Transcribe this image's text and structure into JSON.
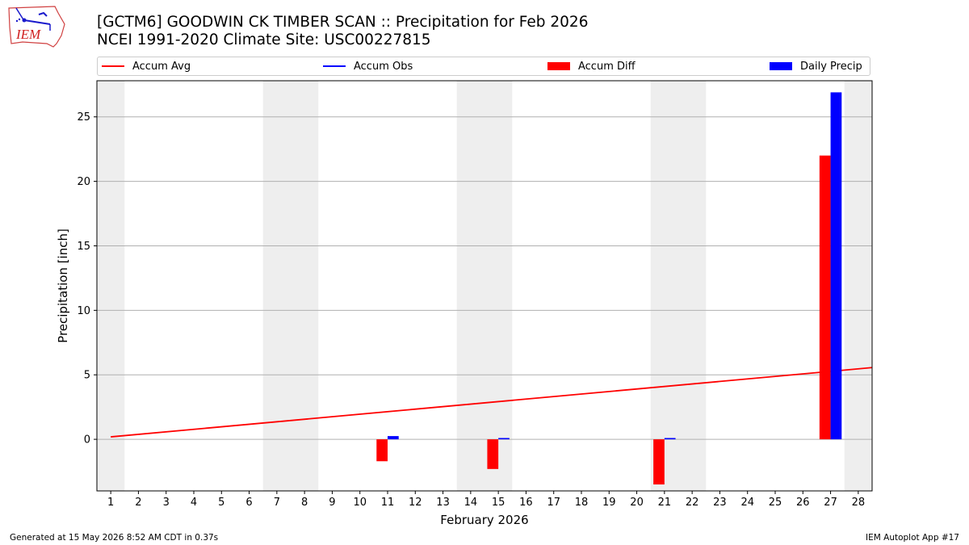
{
  "title": "[GCTM6] GOODWIN CK TIMBER SCAN :: Precipitation for Feb 2026",
  "subtitle": "NCEI 1991-2020 Climate Site: USC00227815",
  "logo_text": "IEM",
  "footer_left": "Generated at 15 May 2026 8:52 AM CDT in 0.37s",
  "footer_right": "IEM Autoplot App #17",
  "legend": [
    {
      "label": "Accum Avg",
      "kind": "line",
      "color": "#ff0000"
    },
    {
      "label": "Accum Obs",
      "kind": "line",
      "color": "#0000ff"
    },
    {
      "label": "Accum Diff",
      "kind": "bar",
      "color": "#ff0000"
    },
    {
      "label": "Daily Precip",
      "kind": "bar",
      "color": "#0000ff"
    }
  ],
  "chart_data": {
    "type": "bar",
    "xlabel": "February 2026",
    "ylabel": "Precipitation [inch]",
    "x": [
      1,
      2,
      3,
      4,
      5,
      6,
      7,
      8,
      9,
      10,
      11,
      12,
      13,
      14,
      15,
      16,
      17,
      18,
      19,
      20,
      21,
      22,
      23,
      24,
      25,
      26,
      27,
      28
    ],
    "xlim": [
      0.5,
      28.5
    ],
    "ylim": [
      -4.0,
      27.8
    ],
    "yticks": [
      0,
      5,
      10,
      15,
      20,
      25
    ],
    "grid": "y",
    "weekend_shading": [
      [
        0.5,
        1.5
      ],
      [
        6.5,
        8.5
      ],
      [
        13.5,
        15.5
      ],
      [
        20.5,
        22.5
      ],
      [
        27.5,
        28.5
      ]
    ],
    "series": [
      {
        "name": "Accum Avg",
        "type": "line",
        "color": "#ff0000",
        "x": [
          1,
          28.5
        ],
        "values": [
          0.19,
          5.56
        ]
      },
      {
        "name": "Accum Diff",
        "type": "bar",
        "color": "#ff0000",
        "x": [
          11,
          15,
          21,
          27
        ],
        "values": [
          -1.7,
          -2.3,
          -3.5,
          22.0
        ]
      },
      {
        "name": "Daily Precip",
        "type": "bar",
        "color": "#0000ff",
        "x": [
          11,
          15,
          21,
          27
        ],
        "values": [
          0.25,
          0.1,
          0.1,
          26.9
        ]
      }
    ]
  }
}
